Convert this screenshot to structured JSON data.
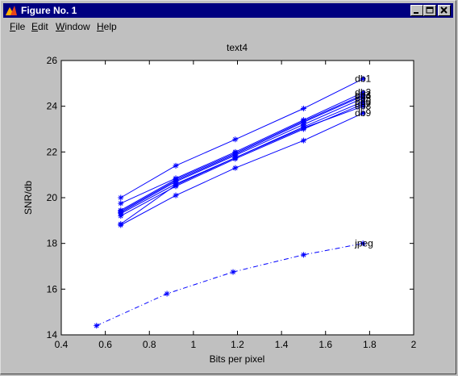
{
  "window": {
    "title": "Figure No. 1",
    "controls": [
      "minimize",
      "maximize",
      "close"
    ]
  },
  "menu": [
    {
      "label": "File",
      "mnemonic": "F"
    },
    {
      "label": "Edit",
      "mnemonic": "E"
    },
    {
      "label": "Window",
      "mnemonic": "W"
    },
    {
      "label": "Help",
      "mnemonic": "H"
    }
  ],
  "chart_data": {
    "type": "line",
    "title": "text4",
    "xlabel": "Bits per pixel",
    "ylabel": "SNR/db",
    "xlim": [
      0.4,
      2
    ],
    "ylim": [
      14,
      26
    ],
    "xticks": [
      0.4,
      0.6,
      0.8,
      1,
      1.2,
      1.4,
      1.6,
      1.8,
      2
    ],
    "xtick_labels": [
      "0.4",
      "0.6",
      "0.8",
      "1",
      "1.2",
      "1.4",
      "1.6",
      "1.8",
      "2"
    ],
    "yticks": [
      14,
      16,
      18,
      20,
      22,
      24,
      26
    ],
    "ytick_labels": [
      "14",
      "16",
      "18",
      "20",
      "22",
      "24",
      "26"
    ],
    "grid": false,
    "series_color": "#0000ff",
    "series": [
      {
        "name": "db1",
        "style": "solid",
        "x": [
          0.67,
          0.92,
          1.19,
          1.5,
          1.77
        ],
        "y": [
          20.0,
          21.4,
          22.55,
          23.9,
          25.2
        ]
      },
      {
        "name": "db2",
        "style": "solid",
        "x": [
          0.67,
          0.92,
          1.19,
          1.5,
          1.77
        ],
        "y": [
          19.75,
          20.85,
          22.0,
          23.4,
          24.6
        ]
      },
      {
        "name": "db3",
        "style": "solid",
        "x": [
          0.67,
          0.92,
          1.19,
          1.5,
          1.77
        ],
        "y": [
          19.45,
          20.8,
          21.95,
          23.35,
          24.5
        ]
      },
      {
        "name": "db4",
        "style": "solid",
        "x": [
          0.67,
          0.92,
          1.19,
          1.5,
          1.77
        ],
        "y": [
          19.4,
          20.75,
          21.9,
          23.3,
          24.45
        ]
      },
      {
        "name": "db5",
        "style": "solid",
        "x": [
          0.67,
          0.92,
          1.19,
          1.5,
          1.77
        ],
        "y": [
          19.35,
          20.7,
          21.85,
          23.2,
          24.35
        ]
      },
      {
        "name": "db6",
        "style": "solid",
        "x": [
          0.67,
          0.92,
          1.19,
          1.5,
          1.77
        ],
        "y": [
          19.3,
          20.6,
          21.75,
          23.1,
          24.2
        ]
      },
      {
        "name": "db7",
        "style": "solid",
        "x": [
          0.67,
          0.92,
          1.19,
          1.5,
          1.77
        ],
        "y": [
          19.2,
          20.5,
          21.7,
          23.0,
          24.1
        ]
      },
      {
        "name": "db8",
        "style": "solid",
        "x": [
          0.67,
          0.92,
          1.19,
          1.5,
          1.77
        ],
        "y": [
          18.85,
          20.55,
          21.75,
          23.05,
          24.0
        ]
      },
      {
        "name": "db9",
        "style": "solid",
        "x": [
          0.67,
          0.92,
          1.19,
          1.5,
          1.77
        ],
        "y": [
          18.8,
          20.1,
          21.3,
          22.5,
          23.7
        ]
      },
      {
        "name": "jpeg",
        "style": "dashdot",
        "x": [
          0.56,
          0.88,
          1.18,
          1.5,
          1.77
        ],
        "y": [
          14.4,
          15.8,
          16.75,
          17.5,
          18.0
        ]
      }
    ],
    "labels": [
      {
        "text": "db1",
        "series": "db1"
      },
      {
        "text": "db2",
        "series": "db2"
      },
      {
        "text": "db3",
        "series": "db3"
      },
      {
        "text": "db4",
        "series": "db4"
      },
      {
        "text": "db5",
        "series": "db5"
      },
      {
        "text": "db6",
        "series": "db6"
      },
      {
        "text": "db7",
        "series": "db7"
      },
      {
        "text": "db8",
        "series": "db8"
      },
      {
        "text": "db9",
        "series": "db9"
      },
      {
        "text": "jpeg",
        "series": "jpeg"
      }
    ]
  }
}
